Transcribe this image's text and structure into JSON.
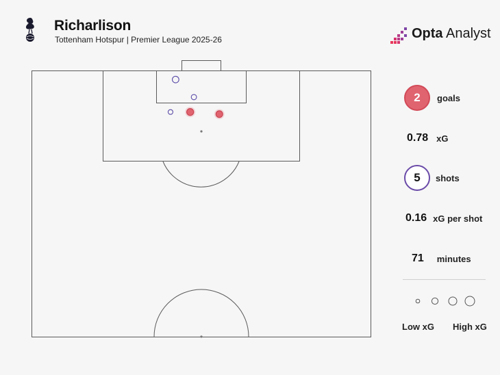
{
  "header": {
    "player": "Richarlison",
    "subtitle": "Tottenham Hotspur | Premier League 2025-26",
    "brand_bold": "Opta",
    "brand_light": " Analyst"
  },
  "stats": {
    "goals": {
      "value": "2",
      "label": "goals"
    },
    "xg": {
      "value": "0.78",
      "label": "xG"
    },
    "shots": {
      "value": "5",
      "label": "shots"
    },
    "xg_per_shot": {
      "value": "0.16",
      "label": "xG per shot"
    },
    "minutes": {
      "value": "71",
      "label": "minutes"
    }
  },
  "legend": {
    "low": "Low xG",
    "high": "High xG"
  },
  "colors": {
    "goal_fill": "#e06470",
    "goal_stroke": "#c9404e",
    "shot_stroke": "#5b4ba8",
    "pitch_line": "#5a5a5a",
    "pitch_fill": "#f6f6f6"
  },
  "chart_data": {
    "type": "scatter",
    "title": "Richarlison",
    "subtitle": "Tottenham Hotspur | Premier League 2025-26",
    "pitch": "half-pitch, attacking toward top",
    "x_range": [
      0,
      100
    ],
    "y_range": [
      50,
      100
    ],
    "series": [
      {
        "name": "goals",
        "points": [
          {
            "x": 46.8,
            "y": 92.2,
            "xg": 0.25
          },
          {
            "x": 55.4,
            "y": 91.8,
            "xg": 0.22
          }
        ]
      },
      {
        "name": "shots",
        "points": [
          {
            "x": 42.5,
            "y": 98.3,
            "xg": 0.2
          },
          {
            "x": 47.9,
            "y": 95.0,
            "xg": 0.07
          },
          {
            "x": 41.0,
            "y": 92.2,
            "xg": 0.04
          }
        ]
      }
    ]
  }
}
